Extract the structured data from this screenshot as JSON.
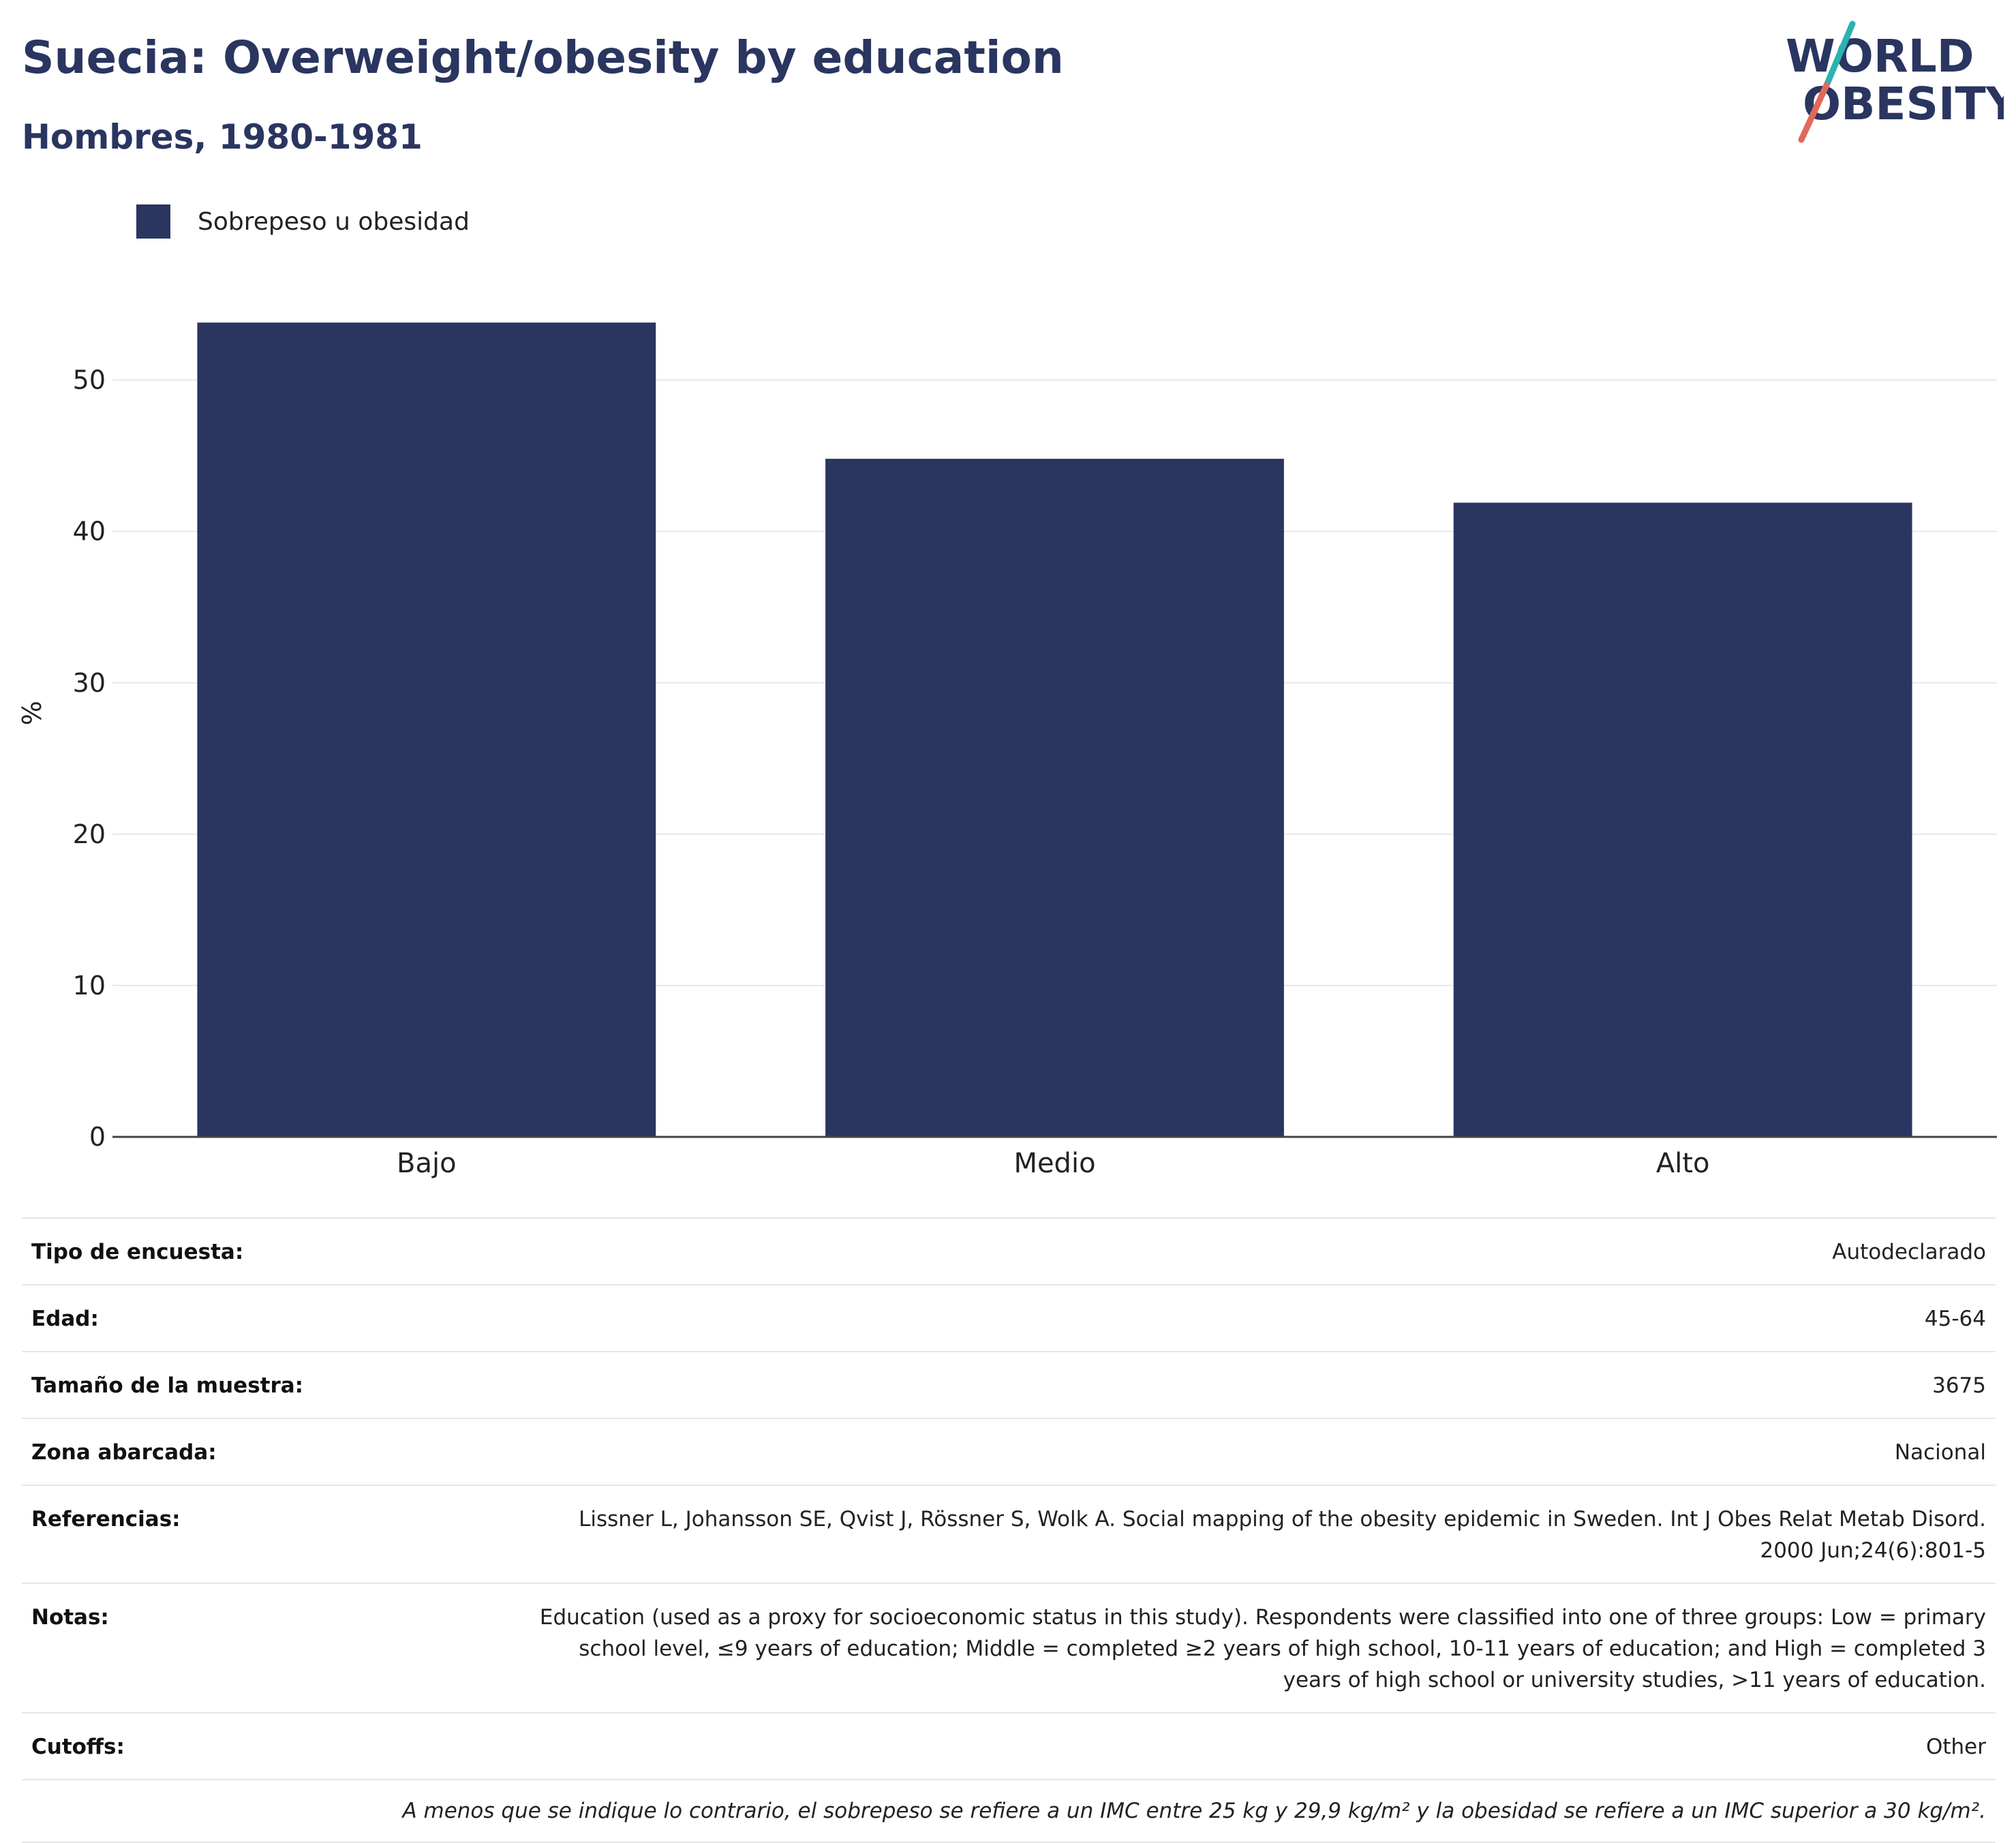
{
  "header": {
    "title": "Suecia: Overweight/obesity by education",
    "subtitle": "Hombres, 1980-1981"
  },
  "logo": {
    "line1": "WORLD",
    "line2": "OBESITY",
    "colors": {
      "text": "#2a3560",
      "slash_top": "#2bb3b1",
      "slash_bottom": "#e2695a"
    }
  },
  "chart_data": {
    "type": "bar",
    "categories": [
      "Bajo",
      "Medio",
      "Alto"
    ],
    "series": [
      {
        "name": "Sobrepeso u obesidad",
        "values": [
          53.8,
          44.8,
          41.9
        ],
        "color": "#2a3560"
      }
    ],
    "ylabel": "%",
    "ylim": [
      0,
      58
    ],
    "yticks": [
      0,
      10,
      20,
      30,
      40,
      50
    ],
    "grid": true,
    "legend": "top-left"
  },
  "info": {
    "rows": [
      {
        "label": "Tipo de encuesta:",
        "value": "Autodeclarado"
      },
      {
        "label": "Edad:",
        "value": "45-64"
      },
      {
        "label": "Tamaño de la muestra:",
        "value": "3675"
      },
      {
        "label": "Zona abarcada:",
        "value": "Nacional"
      },
      {
        "label": "Referencias:",
        "value": "Lissner L, Johansson SE, Qvist J, Rössner S, Wolk A. Social mapping of the obesity epidemic in Sweden. Int J Obes Relat Metab Disord. 2000 Jun;24(6):801-5"
      },
      {
        "label": "Notas:",
        "value": "Education (used as a proxy for socioeconomic status in this study). Respondents were classified into one of three groups: Low = primary school level, ≤9 years of education; Middle = completed ≥2 years of high school, 10-11 years of education; and High = completed 3 years of high school or university studies, >11 years of education."
      },
      {
        "label": "Cutoffs:",
        "value": "Other"
      }
    ],
    "footnote": "A menos que se indique lo contrario, el sobrepeso se refiere a un IMC entre 25 kg y 29,9 kg/m² y la obesidad se refiere a un IMC superior a 30 kg/m²."
  }
}
